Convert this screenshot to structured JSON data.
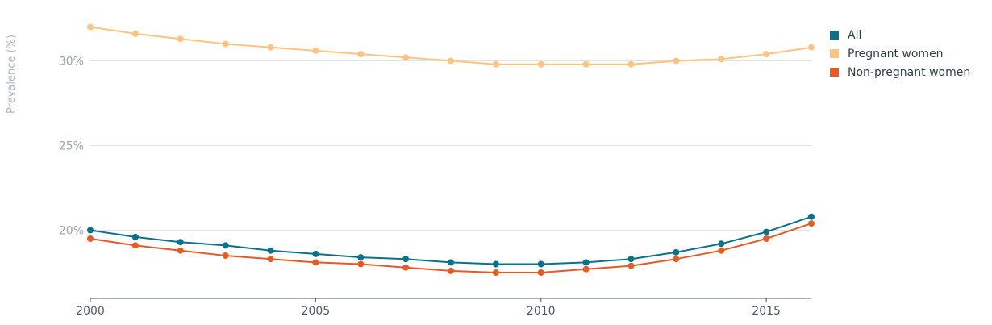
{
  "chart_data": {
    "type": "line",
    "ylabel": "Prevalence (%)",
    "x": [
      2000,
      2001,
      2002,
      2003,
      2004,
      2005,
      2006,
      2007,
      2008,
      2009,
      2010,
      2011,
      2012,
      2013,
      2014,
      2015,
      2016
    ],
    "xlim": [
      2000,
      2016
    ],
    "ylim": [
      16,
      33.5
    ],
    "x_ticks": [
      2000,
      2005,
      2010,
      2015
    ],
    "x_tick_labels": [
      "2000",
      "2005",
      "2010",
      "2015"
    ],
    "y_ticks": [
      20,
      25,
      30
    ],
    "y_tick_labels": [
      "20%",
      "25%",
      "30%"
    ],
    "grid": "horizontal",
    "legend_position": "top-right",
    "series": [
      {
        "name": "All",
        "color": "#0b7189",
        "values": [
          20.0,
          19.6,
          19.3,
          19.1,
          18.8,
          18.6,
          18.4,
          18.3,
          18.1,
          18.0,
          18.0,
          18.1,
          18.3,
          18.7,
          19.2,
          19.9,
          20.8
        ]
      },
      {
        "name": "Pregnant women",
        "color": "#fcc481",
        "values": [
          32.0,
          31.6,
          31.3,
          31.0,
          30.8,
          30.6,
          30.4,
          30.2,
          30.0,
          29.8,
          29.8,
          29.8,
          29.8,
          30.0,
          30.1,
          30.4,
          30.8
        ]
      },
      {
        "name": "Non-pregnant women",
        "color": "#e55b25",
        "values": [
          19.5,
          19.1,
          18.8,
          18.5,
          18.3,
          18.1,
          18.0,
          17.8,
          17.6,
          17.5,
          17.5,
          17.7,
          17.9,
          18.3,
          18.8,
          19.5,
          20.4
        ]
      }
    ]
  }
}
